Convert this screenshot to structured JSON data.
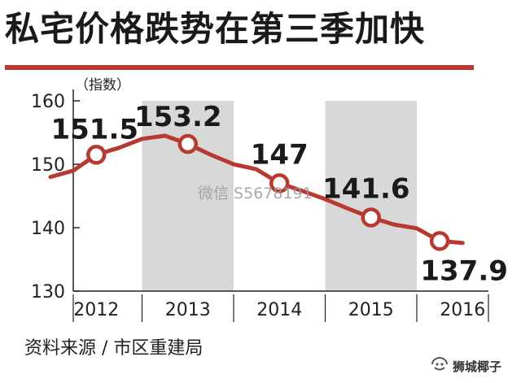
{
  "header": {
    "title": "私宅价格跌势在第三季加快"
  },
  "footer": {
    "source": "资料来源 / 市区重建局",
    "logo_text": "狮城椰子"
  },
  "watermark": "微信 S5678191",
  "colors": {
    "accent": "#b63a32",
    "band": "#d9d8d8",
    "text": "#1a1a1a"
  },
  "chart_data": {
    "type": "line",
    "title": "私宅价格跌势在第三季加快",
    "ylabel": "（指数）",
    "ylim": [
      130,
      160
    ],
    "yticks": [
      130,
      140,
      150,
      160
    ],
    "categories": [
      "2012",
      "2013",
      "2014",
      "2015",
      "2016"
    ],
    "shaded_years": [
      "2013",
      "2015"
    ],
    "series": [
      {
        "x": [
          2012.0,
          2012.25,
          2012.5,
          2012.75,
          2013.0,
          2013.25,
          2013.5,
          2013.75,
          2014.0,
          2014.25,
          2014.5,
          2014.75,
          2015.0,
          2015.25,
          2015.5,
          2015.75,
          2016.0,
          2016.25,
          2016.5
        ],
        "values": [
          148.0,
          149.0,
          151.5,
          152.6,
          154.0,
          154.5,
          153.2,
          151.5,
          150.0,
          149.2,
          147.0,
          145.8,
          144.5,
          143.0,
          141.6,
          140.5,
          139.9,
          137.9,
          137.6
        ]
      }
    ],
    "labeled_points": [
      {
        "x": 2012.5,
        "value": 151.5,
        "label": "151.5"
      },
      {
        "x": 2013.5,
        "value": 153.2,
        "label": "153.2"
      },
      {
        "x": 2014.5,
        "value": 147,
        "label": "147"
      },
      {
        "x": 2015.5,
        "value": 141.6,
        "label": "141.6"
      },
      {
        "x": 2016.25,
        "value": 137.9,
        "label": "137.9"
      }
    ]
  }
}
